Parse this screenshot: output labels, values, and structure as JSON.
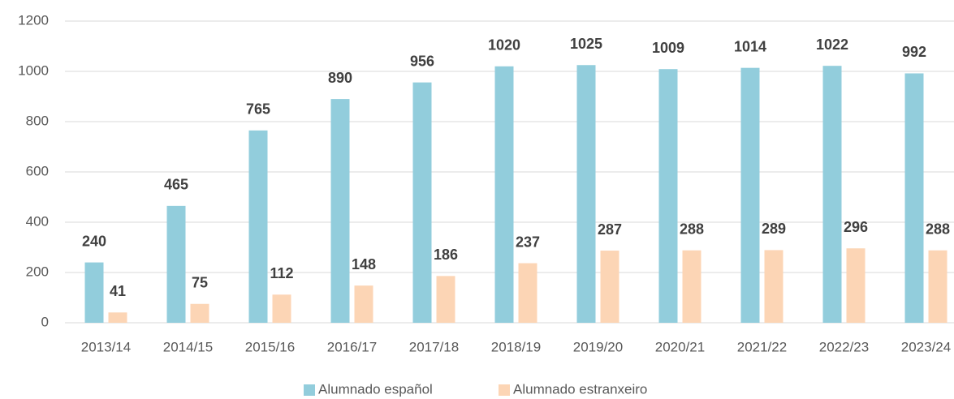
{
  "chart_data": {
    "type": "bar",
    "categories": [
      "2013/14",
      "2014/15",
      "2015/16",
      "2016/17",
      "2017/18",
      "2018/19",
      "2019/20",
      "2020/21",
      "2021/22",
      "2022/23",
      "2023/24"
    ],
    "series": [
      {
        "name": "Alumnado español",
        "color": "#92cddc",
        "values": [
          240,
          465,
          765,
          890,
          956,
          1020,
          1025,
          1009,
          1014,
          1022,
          992
        ]
      },
      {
        "name": "Alumnado estranxeiro",
        "color": "#fcd5b5",
        "values": [
          41,
          75,
          112,
          148,
          186,
          237,
          287,
          288,
          289,
          296,
          288
        ]
      }
    ],
    "ylim": [
      0,
      1200
    ],
    "yticks": [
      0,
      200,
      400,
      600,
      800,
      1000,
      1200
    ],
    "grid": true,
    "legend": "bottom"
  }
}
